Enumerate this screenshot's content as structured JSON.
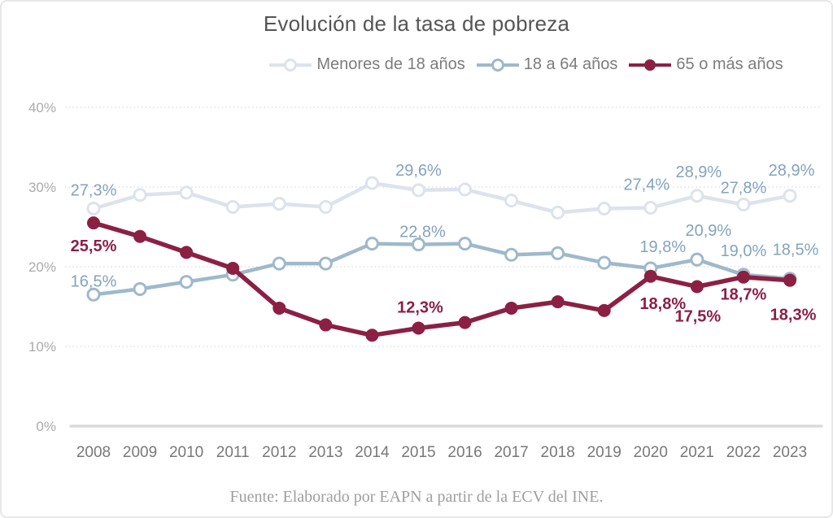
{
  "card": {
    "title": "Evolución de la tasa de pobreza",
    "source_note": "Fuente: Elaborado por EAPN a partir de la ECV del INE."
  },
  "legend": {
    "position": "top",
    "items": [
      {
        "label": "Menores de 18 años",
        "marker": "hollow",
        "color": "#DCE3EC"
      },
      {
        "label": "18 a 64 años",
        "marker": "hollow",
        "color": "#9FB9CB"
      },
      {
        "label": "65 o más años",
        "marker": "filled",
        "color": "#8B2043"
      }
    ]
  },
  "chart_data": {
    "type": "line",
    "title": "Evolución de la tasa de pobreza",
    "categories": [
      2008,
      2009,
      2010,
      2011,
      2012,
      2013,
      2014,
      2015,
      2016,
      2017,
      2018,
      2019,
      2020,
      2021,
      2022,
      2023
    ],
    "ylim": [
      0,
      40
    ],
    "yticks": [
      0,
      10,
      20,
      30,
      40
    ],
    "ytick_labels": [
      "0%",
      "10%",
      "20%",
      "30%",
      "40%"
    ],
    "grid": "dotted-horizontal",
    "axis_line_color": "#DBDBDB",
    "gridline_color": "#D9D9D9",
    "series": [
      {
        "name": "Menores de 18 años",
        "slug": "menores-de-18-anos",
        "color": "#DCE3EC",
        "marker": "hollow",
        "label_color": "#84A3BC",
        "values": [
          27.3,
          29.0,
          29.3,
          27.5,
          27.9,
          27.5,
          30.5,
          29.6,
          29.7,
          28.3,
          26.8,
          27.3,
          27.4,
          28.9,
          27.8,
          28.9
        ],
        "point_labels": [
          {
            "year": 2008,
            "text": "27,3%",
            "dx": 0,
            "dy": -16
          },
          {
            "year": 2015,
            "text": "29,6%",
            "dx": 0,
            "dy": -18
          },
          {
            "year": 2020,
            "text": "27,4%",
            "dx": -5,
            "dy": -22
          },
          {
            "year": 2021,
            "text": "28,9%",
            "dx": 2,
            "dy": -23
          },
          {
            "year": 2022,
            "text": "27,8%",
            "dx": 0,
            "dy": -14
          },
          {
            "year": 2023,
            "text": "28,9%",
            "dx": 2,
            "dy": -25
          }
        ]
      },
      {
        "name": "18 a 64 años",
        "slug": "18-a-64-anos",
        "color": "#9FB9CB",
        "marker": "hollow",
        "label_color": "#84A3BC",
        "values": [
          16.5,
          17.2,
          18.1,
          19.0,
          20.4,
          20.4,
          22.9,
          22.8,
          22.9,
          21.5,
          21.7,
          20.5,
          19.8,
          20.9,
          19.0,
          18.5
        ],
        "point_labels": [
          {
            "year": 2008,
            "text": "16,5%",
            "dx": 0,
            "dy": -10
          },
          {
            "year": 2015,
            "text": "22,8%",
            "dx": 5,
            "dy": -9
          },
          {
            "year": 2020,
            "text": "19,8%",
            "dx": 15,
            "dy": -20
          },
          {
            "year": 2021,
            "text": "20,9%",
            "dx": 14,
            "dy": -29
          },
          {
            "year": 2022,
            "text": "19,0%",
            "dx": 0,
            "dy": -23
          },
          {
            "year": 2023,
            "text": "18,5%",
            "dx": 7,
            "dy": -29
          }
        ]
      },
      {
        "name": "65 o más años",
        "slug": "65-o-mas-anos",
        "color": "#8B2043",
        "marker": "filled",
        "label_color": "#8B2043",
        "label_bold": true,
        "values": [
          25.5,
          23.8,
          21.8,
          19.8,
          14.8,
          12.7,
          11.4,
          12.3,
          13.0,
          14.8,
          15.6,
          14.5,
          18.8,
          17.5,
          18.7,
          18.3
        ],
        "point_labels": [
          {
            "year": 2008,
            "text": "25,5%",
            "dx": 0,
            "dy": 35
          },
          {
            "year": 2015,
            "text": "12,3%",
            "dx": 2,
            "dy": -19
          },
          {
            "year": 2020,
            "text": "18,8%",
            "dx": 15,
            "dy": 40
          },
          {
            "year": 2021,
            "text": "17,5%",
            "dx": 1,
            "dy": 43
          },
          {
            "year": 2022,
            "text": "18,7%",
            "dx": 0,
            "dy": 28
          },
          {
            "year": 2023,
            "text": "18,3%",
            "dx": 4,
            "dy": 49
          }
        ]
      }
    ]
  }
}
